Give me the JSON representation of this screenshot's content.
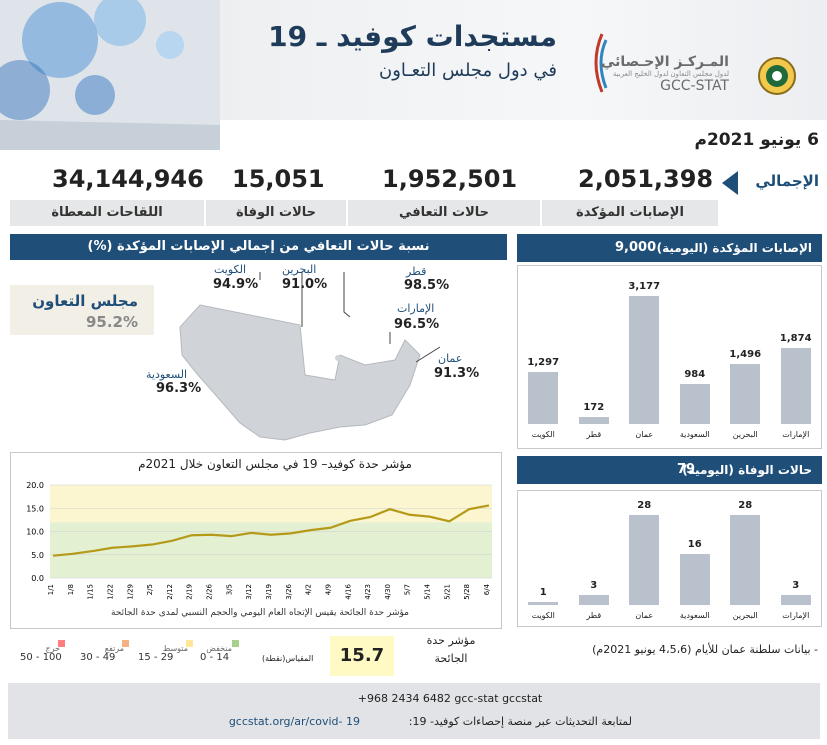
{
  "header": {
    "title_main": "مستجدات كوفيد ـ 19",
    "title_sub": "في دول مجلس التعـاون",
    "org_name_ar": "المـركـز الإحـصائي",
    "org_sub_ar": "لدول مجلس التعاون لدول الخليج العربية",
    "org_name_en": "GCC-STAT"
  },
  "date": "6 يونيو 2021م",
  "totals": {
    "label": "الإجمالي",
    "items": [
      {
        "label": "الإصابات المؤكدة",
        "value": "2,051,398"
      },
      {
        "label": "حالات التعافي",
        "value": "1,952,501"
      },
      {
        "label": "حالات الوفاة",
        "value": "15,051"
      },
      {
        "label": "اللقاحات المعطاة",
        "value": "34,144,946"
      }
    ]
  },
  "recovery_map": {
    "title": "نسبة حالات التعافي من إجمالي الإصابات المؤكدة (%)",
    "gcc_label": "مجلس التعاون",
    "gcc_value": "95.2%",
    "countries": [
      {
        "name": "الكويت",
        "value": "94.9%"
      },
      {
        "name": "البحرين",
        "value": "91.0%"
      },
      {
        "name": "قطر",
        "value": "98.5%"
      },
      {
        "name": "الإمارات",
        "value": "96.5%"
      },
      {
        "name": "عمان",
        "value": "91.3%"
      },
      {
        "name": "السعودية",
        "value": "96.3%"
      }
    ]
  },
  "chart_data": [
    {
      "type": "bar",
      "title": "الإصابات المؤكدة (اليومية)",
      "total": "9,000",
      "categories": [
        "الكويت",
        "قطر",
        "عمان",
        "السعودية",
        "البحرين",
        "الإمارات"
      ],
      "values": [
        1297,
        172,
        3177,
        984,
        1496,
        1874
      ],
      "value_labels": [
        "1,297",
        "172",
        "3,177",
        "984",
        "1,496",
        "1,874"
      ]
    },
    {
      "type": "bar",
      "title": "حالات الوفاة (اليومية)",
      "total": "79",
      "categories": [
        "الكويت",
        "قطر",
        "عمان",
        "السعودية",
        "البحرين",
        "الإمارات"
      ],
      "values": [
        1,
        3,
        28,
        16,
        28,
        3
      ],
      "value_labels": [
        "1",
        "3",
        "28",
        "16",
        "28",
        "3"
      ]
    },
    {
      "type": "line",
      "title": "مؤشر حدة كوفيد– 19 في مجلس التعاون خلال 2021م",
      "note": "مؤشر حدة الجائحة يقيس الإتجاه العام اليومي والحجم النسبي لمدى حدة الجائحة",
      "ylim": [
        0,
        20
      ],
      "yticks": [
        "0.0",
        "5.0",
        "10.0",
        "15.0",
        "20.0"
      ],
      "xticks": [
        "1/1",
        "1/8",
        "1/15",
        "1/22",
        "1/29",
        "2/5",
        "2/12",
        "2/19",
        "2/26",
        "3/5",
        "3/12",
        "3/19",
        "3/26",
        "4/2",
        "4/9",
        "4/16",
        "4/23",
        "4/30",
        "5/7",
        "5/14",
        "5/21",
        "5/28",
        "6/4"
      ],
      "series": [
        {
          "values": [
            4.8,
            5.2,
            5.8,
            6.5,
            6.8,
            7.2,
            8.0,
            9.2,
            9.3,
            9.0,
            9.7,
            9.3,
            9.6,
            10.3,
            10.8,
            12.3,
            13.1,
            14.8,
            13.6,
            13.2,
            12.2,
            14.8,
            15.6
          ]
        }
      ],
      "bands": [
        {
          "from": 0,
          "to": 12,
          "color": "#e3f0d2"
        },
        {
          "from": 12,
          "to": 20,
          "color": "#fbf6cf"
        }
      ]
    }
  ],
  "severity": {
    "label": "مؤشر حدة الجائحة",
    "value": "15.7",
    "scale_label": "المقياس(نقطة)",
    "legend": [
      {
        "name": "منخفض",
        "range": "0 - 14",
        "color": "#a8d08d"
      },
      {
        "name": "متوسط",
        "range": "15 - 29",
        "color": "#ffe699"
      },
      {
        "name": "مرتفع",
        "range": "30 - 49",
        "color": "#f4b183"
      },
      {
        "name": "حرج",
        "range": "50 - 100",
        "color": "#ff7c80"
      }
    ]
  },
  "oman_note": "- بيانات سلطنة عمان للأيام (4،5،6 يونيو 2021م)",
  "footer": {
    "line1": "+968 2434 6482  gcc-stat  gccstat",
    "line2_label": "لمتابعة التحديثات عبر منصة إحصاءات كوفيد- 19:",
    "url": "gccstat.org/ar/covid- 19"
  },
  "colors": {
    "brand_blue": "#1f4e79",
    "bar": "#b9c2cc",
    "line": "#b59a1a"
  }
}
